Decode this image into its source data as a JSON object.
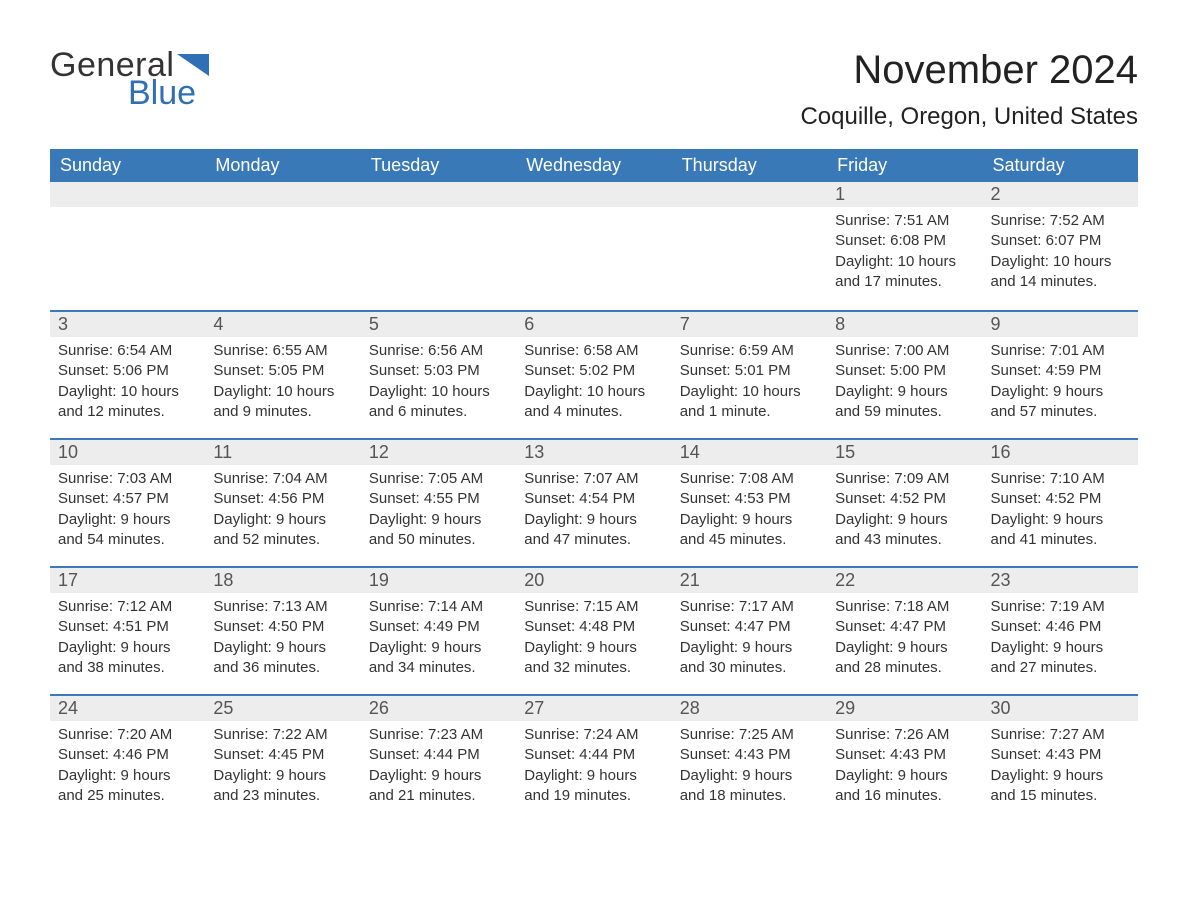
{
  "logo": {
    "word1": "General",
    "word2": "Blue",
    "tri_color": "#2f6fb3"
  },
  "title": "November 2024",
  "location": "Coquille, Oregon, United States",
  "colors": {
    "header_bg": "#3a79b7",
    "header_text": "#ffffff",
    "daynum_bg": "#ededed",
    "daynum_border": "#3a79b7",
    "body_text": "#333333",
    "logo_blue": "#2f6fb3"
  },
  "weekdays": [
    "Sunday",
    "Monday",
    "Tuesday",
    "Wednesday",
    "Thursday",
    "Friday",
    "Saturday"
  ],
  "weeks": [
    [
      null,
      null,
      null,
      null,
      null,
      {
        "n": "1",
        "sunrise": "Sunrise: 7:51 AM",
        "sunset": "Sunset: 6:08 PM",
        "day1": "Daylight: 10 hours",
        "day2": "and 17 minutes."
      },
      {
        "n": "2",
        "sunrise": "Sunrise: 7:52 AM",
        "sunset": "Sunset: 6:07 PM",
        "day1": "Daylight: 10 hours",
        "day2": "and 14 minutes."
      }
    ],
    [
      {
        "n": "3",
        "sunrise": "Sunrise: 6:54 AM",
        "sunset": "Sunset: 5:06 PM",
        "day1": "Daylight: 10 hours",
        "day2": "and 12 minutes."
      },
      {
        "n": "4",
        "sunrise": "Sunrise: 6:55 AM",
        "sunset": "Sunset: 5:05 PM",
        "day1": "Daylight: 10 hours",
        "day2": "and 9 minutes."
      },
      {
        "n": "5",
        "sunrise": "Sunrise: 6:56 AM",
        "sunset": "Sunset: 5:03 PM",
        "day1": "Daylight: 10 hours",
        "day2": "and 6 minutes."
      },
      {
        "n": "6",
        "sunrise": "Sunrise: 6:58 AM",
        "sunset": "Sunset: 5:02 PM",
        "day1": "Daylight: 10 hours",
        "day2": "and 4 minutes."
      },
      {
        "n": "7",
        "sunrise": "Sunrise: 6:59 AM",
        "sunset": "Sunset: 5:01 PM",
        "day1": "Daylight: 10 hours",
        "day2": "and 1 minute."
      },
      {
        "n": "8",
        "sunrise": "Sunrise: 7:00 AM",
        "sunset": "Sunset: 5:00 PM",
        "day1": "Daylight: 9 hours",
        "day2": "and 59 minutes."
      },
      {
        "n": "9",
        "sunrise": "Sunrise: 7:01 AM",
        "sunset": "Sunset: 4:59 PM",
        "day1": "Daylight: 9 hours",
        "day2": "and 57 minutes."
      }
    ],
    [
      {
        "n": "10",
        "sunrise": "Sunrise: 7:03 AM",
        "sunset": "Sunset: 4:57 PM",
        "day1": "Daylight: 9 hours",
        "day2": "and 54 minutes."
      },
      {
        "n": "11",
        "sunrise": "Sunrise: 7:04 AM",
        "sunset": "Sunset: 4:56 PM",
        "day1": "Daylight: 9 hours",
        "day2": "and 52 minutes."
      },
      {
        "n": "12",
        "sunrise": "Sunrise: 7:05 AM",
        "sunset": "Sunset: 4:55 PM",
        "day1": "Daylight: 9 hours",
        "day2": "and 50 minutes."
      },
      {
        "n": "13",
        "sunrise": "Sunrise: 7:07 AM",
        "sunset": "Sunset: 4:54 PM",
        "day1": "Daylight: 9 hours",
        "day2": "and 47 minutes."
      },
      {
        "n": "14",
        "sunrise": "Sunrise: 7:08 AM",
        "sunset": "Sunset: 4:53 PM",
        "day1": "Daylight: 9 hours",
        "day2": "and 45 minutes."
      },
      {
        "n": "15",
        "sunrise": "Sunrise: 7:09 AM",
        "sunset": "Sunset: 4:52 PM",
        "day1": "Daylight: 9 hours",
        "day2": "and 43 minutes."
      },
      {
        "n": "16",
        "sunrise": "Sunrise: 7:10 AM",
        "sunset": "Sunset: 4:52 PM",
        "day1": "Daylight: 9 hours",
        "day2": "and 41 minutes."
      }
    ],
    [
      {
        "n": "17",
        "sunrise": "Sunrise: 7:12 AM",
        "sunset": "Sunset: 4:51 PM",
        "day1": "Daylight: 9 hours",
        "day2": "and 38 minutes."
      },
      {
        "n": "18",
        "sunrise": "Sunrise: 7:13 AM",
        "sunset": "Sunset: 4:50 PM",
        "day1": "Daylight: 9 hours",
        "day2": "and 36 minutes."
      },
      {
        "n": "19",
        "sunrise": "Sunrise: 7:14 AM",
        "sunset": "Sunset: 4:49 PM",
        "day1": "Daylight: 9 hours",
        "day2": "and 34 minutes."
      },
      {
        "n": "20",
        "sunrise": "Sunrise: 7:15 AM",
        "sunset": "Sunset: 4:48 PM",
        "day1": "Daylight: 9 hours",
        "day2": "and 32 minutes."
      },
      {
        "n": "21",
        "sunrise": "Sunrise: 7:17 AM",
        "sunset": "Sunset: 4:47 PM",
        "day1": "Daylight: 9 hours",
        "day2": "and 30 minutes."
      },
      {
        "n": "22",
        "sunrise": "Sunrise: 7:18 AM",
        "sunset": "Sunset: 4:47 PM",
        "day1": "Daylight: 9 hours",
        "day2": "and 28 minutes."
      },
      {
        "n": "23",
        "sunrise": "Sunrise: 7:19 AM",
        "sunset": "Sunset: 4:46 PM",
        "day1": "Daylight: 9 hours",
        "day2": "and 27 minutes."
      }
    ],
    [
      {
        "n": "24",
        "sunrise": "Sunrise: 7:20 AM",
        "sunset": "Sunset: 4:46 PM",
        "day1": "Daylight: 9 hours",
        "day2": "and 25 minutes."
      },
      {
        "n": "25",
        "sunrise": "Sunrise: 7:22 AM",
        "sunset": "Sunset: 4:45 PM",
        "day1": "Daylight: 9 hours",
        "day2": "and 23 minutes."
      },
      {
        "n": "26",
        "sunrise": "Sunrise: 7:23 AM",
        "sunset": "Sunset: 4:44 PM",
        "day1": "Daylight: 9 hours",
        "day2": "and 21 minutes."
      },
      {
        "n": "27",
        "sunrise": "Sunrise: 7:24 AM",
        "sunset": "Sunset: 4:44 PM",
        "day1": "Daylight: 9 hours",
        "day2": "and 19 minutes."
      },
      {
        "n": "28",
        "sunrise": "Sunrise: 7:25 AM",
        "sunset": "Sunset: 4:43 PM",
        "day1": "Daylight: 9 hours",
        "day2": "and 18 minutes."
      },
      {
        "n": "29",
        "sunrise": "Sunrise: 7:26 AM",
        "sunset": "Sunset: 4:43 PM",
        "day1": "Daylight: 9 hours",
        "day2": "and 16 minutes."
      },
      {
        "n": "30",
        "sunrise": "Sunrise: 7:27 AM",
        "sunset": "Sunset: 4:43 PM",
        "day1": "Daylight: 9 hours",
        "day2": "and 15 minutes."
      }
    ]
  ]
}
